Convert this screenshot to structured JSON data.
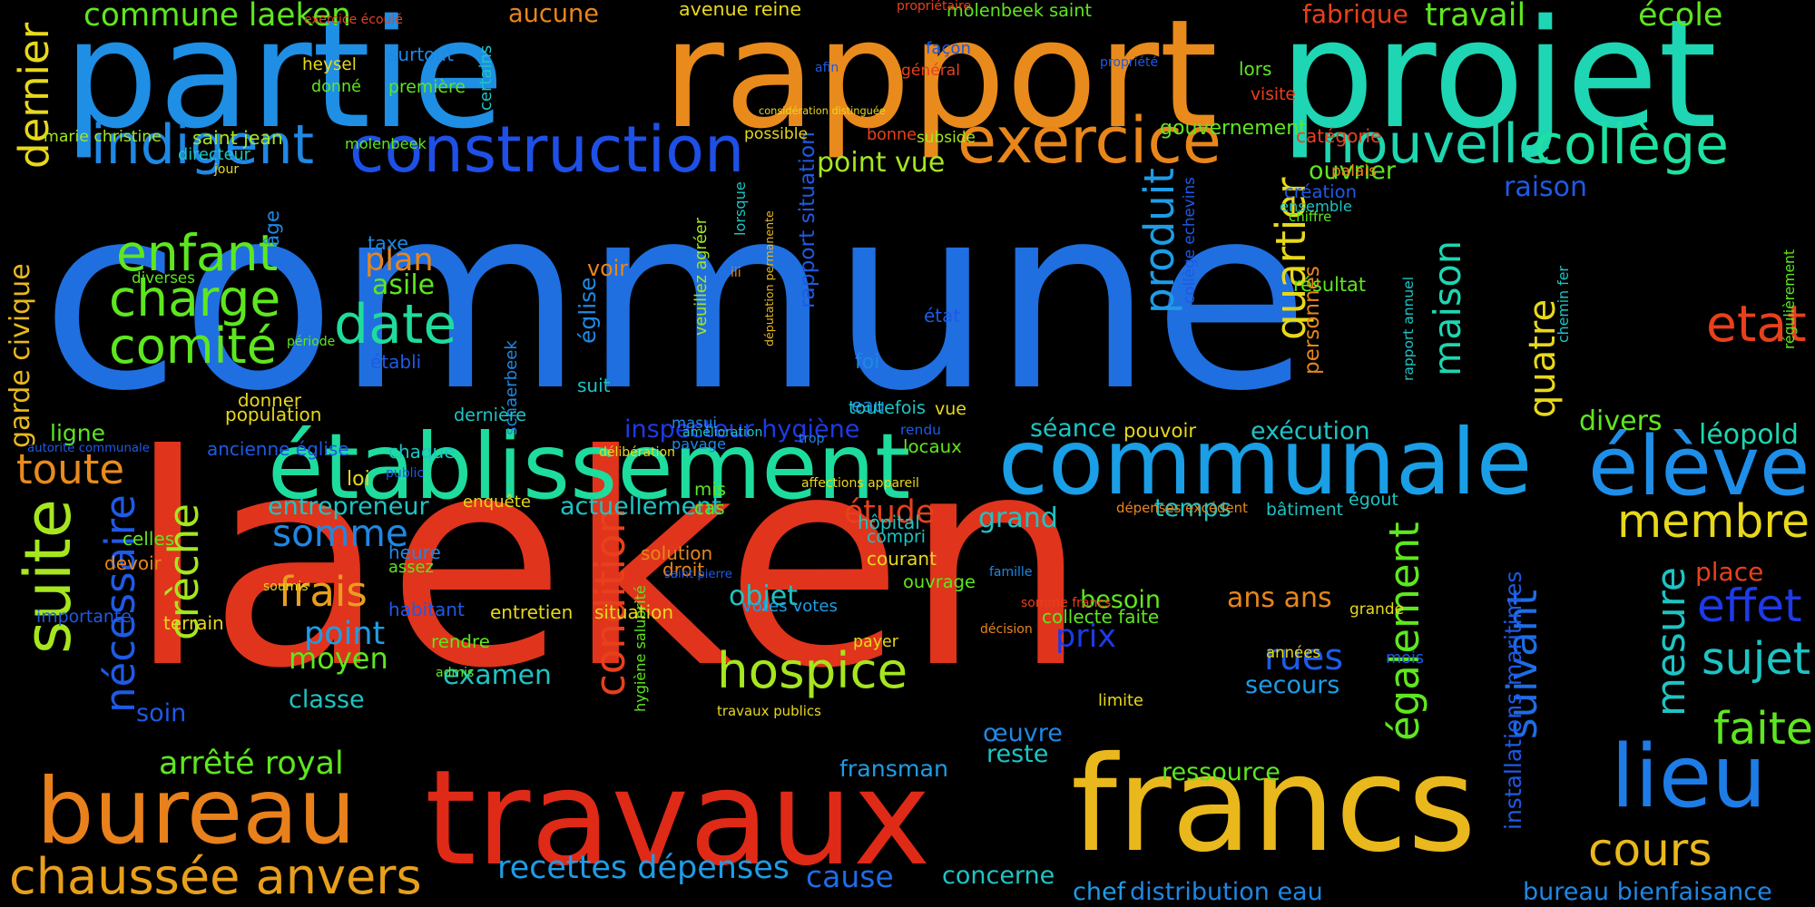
{
  "words": [
    {
      "text": "commune",
      "color": "#1f6fe0"
    },
    {
      "text": "laeken",
      "color": "#e0341c"
    },
    {
      "text": "rapport",
      "color": "#e88a1c"
    },
    {
      "text": "partie",
      "color": "#1e8fe4"
    },
    {
      "text": "projet",
      "color": "#1ed6b4"
    },
    {
      "text": "travaux",
      "color": "#e02a18"
    },
    {
      "text": "francs",
      "color": "#e8b81c"
    },
    {
      "text": "communale",
      "color": "#1a9ee6"
    },
    {
      "text": "établissement",
      "color": "#1edc9e"
    },
    {
      "text": "bureau",
      "color": "#e8801c"
    },
    {
      "text": "construction",
      "color": "#1e50e8"
    },
    {
      "text": "exercice",
      "color": "#e8861c"
    },
    {
      "text": "élève",
      "color": "#1e8ee8"
    },
    {
      "text": "suite",
      "color": "#a6e61e"
    },
    {
      "text": "lieu",
      "color": "#1e7ce6"
    },
    {
      "text": "indigent",
      "color": "#1e88e4"
    },
    {
      "text": "nouvelle",
      "color": "#1ed6b0"
    },
    {
      "text": "collège",
      "color": "#1ee0a0"
    },
    {
      "text": "hospice",
      "color": "#a6e61e"
    },
    {
      "text": "chaussée anvers",
      "color": "#e8a01c"
    },
    {
      "text": "enfant",
      "color": "#5ee61e"
    },
    {
      "text": "charge",
      "color": "#5ee61e"
    },
    {
      "text": "comité",
      "color": "#5ee61e"
    },
    {
      "text": "date",
      "color": "#1edc9e"
    },
    {
      "text": "membre",
      "color": "#e8d81c"
    },
    {
      "text": "cours",
      "color": "#e8b81c"
    },
    {
      "text": "effet",
      "color": "#1e3ae6"
    },
    {
      "text": "faite",
      "color": "#5ee61e"
    },
    {
      "text": "sujet",
      "color": "#1ec4c4"
    },
    {
      "text": "etat",
      "color": "#e8401c"
    },
    {
      "text": "toute",
      "color": "#e88a1c"
    },
    {
      "text": "somme",
      "color": "#1e88e4"
    },
    {
      "text": "frais",
      "color": "#e8a01c"
    },
    {
      "text": "rues",
      "color": "#1e5ae6"
    },
    {
      "text": "recettes dépenses",
      "color": "#1e9ce6"
    },
    {
      "text": "commune laeken",
      "color": "#5ee61e"
    },
    {
      "text": "travail",
      "color": "#5ee61e"
    },
    {
      "text": "école",
      "color": "#5ee61e"
    },
    {
      "text": "dernier",
      "color": "#e8d81c"
    },
    {
      "text": "point",
      "color": "#1e9ce6"
    },
    {
      "text": "moyen",
      "color": "#5ee61e"
    },
    {
      "text": "plan",
      "color": "#e8861c"
    },
    {
      "text": "asile",
      "color": "#5ee61e"
    },
    {
      "text": "arrêté royal",
      "color": "#5ee61e"
    },
    {
      "text": "prix",
      "color": "#1e3ae6"
    },
    {
      "text": "cause",
      "color": "#1e6ce6"
    },
    {
      "text": "examen",
      "color": "#1ec4c4"
    },
    {
      "text": "produit",
      "color": "#1e9ce6"
    },
    {
      "text": "quartier",
      "color": "#e8d81c"
    },
    {
      "text": "maison",
      "color": "#1ed6b0"
    },
    {
      "text": "condition",
      "color": "#e8401c"
    },
    {
      "text": "également",
      "color": "#5ee61e"
    },
    {
      "text": "suivant",
      "color": "#1e6ce6"
    },
    {
      "text": "mesure",
      "color": "#1ec4c4"
    },
    {
      "text": "crèche",
      "color": "#a6e61e"
    },
    {
      "text": "nécessaire",
      "color": "#1e5ae6"
    },
    {
      "text": "quatre",
      "color": "#e8d81c"
    },
    {
      "text": "exécution",
      "color": "#1ec4c4"
    },
    {
      "text": "séance",
      "color": "#1ec4c4"
    },
    {
      "text": "pouvoir",
      "color": "#e8d81c"
    },
    {
      "text": "léopold",
      "color": "#1ed6b0"
    },
    {
      "text": "divers",
      "color": "#5ee61e"
    },
    {
      "text": "étude",
      "color": "#e8401c"
    },
    {
      "text": "temps",
      "color": "#1ec4c4"
    },
    {
      "text": "grand",
      "color": "#1ec4c4"
    },
    {
      "text": "objet",
      "color": "#1ec4c4"
    },
    {
      "text": "besoin",
      "color": "#5ee61e"
    },
    {
      "text": "ans ans",
      "color": "#e8861c"
    },
    {
      "text": "secours",
      "color": "#1e9ce6"
    },
    {
      "text": "reste",
      "color": "#1ec4c4"
    },
    {
      "text": "œuvre",
      "color": "#1e88e4"
    },
    {
      "text": "fransman",
      "color": "#1e9ce6"
    },
    {
      "text": "ressource",
      "color": "#5ee61e"
    },
    {
      "text": "chef",
      "color": "#1e9ce6"
    },
    {
      "text": "distribution eau",
      "color": "#1e88e4"
    },
    {
      "text": "bureau bienfaisance",
      "color": "#1e88e4"
    },
    {
      "text": "entrepreneur",
      "color": "#1ec4c4"
    },
    {
      "text": "actuellement",
      "color": "#1ec4c4"
    },
    {
      "text": "inspecteur hygiène",
      "color": "#1e3ae6"
    },
    {
      "text": "place",
      "color": "#e8401c"
    },
    {
      "text": "gouvernement",
      "color": "#5ee61e"
    },
    {
      "text": "raison",
      "color": "#1e5ae6"
    },
    {
      "text": "ouvrier",
      "color": "#5ee61e"
    },
    {
      "text": "concerne",
      "color": "#1ec4c4"
    },
    {
      "text": "point vue",
      "color": "#a6e61e"
    },
    {
      "text": "classe",
      "color": "#1ec4c4"
    },
    {
      "text": "soin",
      "color": "#1e5ae6"
    },
    {
      "text": "ligne",
      "color": "#5ee61e"
    },
    {
      "text": "aucune",
      "color": "#e8861c"
    },
    {
      "text": "fabrique",
      "color": "#e8401c"
    },
    {
      "text": "avenue reine",
      "color": "#e8d81c"
    },
    {
      "text": "molenbeek saint",
      "color": "#5ee61e"
    },
    {
      "text": "installations maritimes",
      "color": "#1e5ae6"
    },
    {
      "text": "rapport situation",
      "color": "#1e5ae6"
    },
    {
      "text": "garde civique",
      "color": "#e8b81c"
    },
    {
      "text": "schaerbeek",
      "color": "#1e88e4"
    },
    {
      "text": "église",
      "color": "#1e88e4"
    },
    {
      "text": "députation permanente",
      "color": "#e8b81c"
    },
    {
      "text": "veuillez agréer",
      "color": "#a6e61e"
    },
    {
      "text": "hygiène salubrité",
      "color": "#5ee61e"
    },
    {
      "text": "rapport annuel",
      "color": "#1ec4c4"
    },
    {
      "text": "collège echevins",
      "color": "#1e5ae6"
    },
    {
      "text": "personnes",
      "color": "#e8861c"
    },
    {
      "text": "chemin fer",
      "color": "#1ec4c4"
    },
    {
      "text": "régulièrement",
      "color": "#5ee61e"
    },
    {
      "text": "heysel",
      "color": "#e8d81c"
    },
    {
      "text": "surtout",
      "color": "#1e88e4"
    },
    {
      "text": "donné",
      "color": "#5ee61e"
    },
    {
      "text": "première",
      "color": "#5ee61e"
    },
    {
      "text": "marie christine",
      "color": "#a6e61e"
    },
    {
      "text": "saint jean",
      "color": "#a6e61e"
    },
    {
      "text": "directeur",
      "color": "#1ec4c4"
    },
    {
      "text": "molenbeek",
      "color": "#5ee61e"
    },
    {
      "text": "bonne",
      "color": "#e8401c"
    },
    {
      "text": "possible",
      "color": "#e8d81c"
    },
    {
      "text": "subside",
      "color": "#a6e61e"
    },
    {
      "text": "façon",
      "color": "#1e5ae6"
    },
    {
      "text": "général",
      "color": "#e8401c"
    },
    {
      "text": "lors",
      "color": "#5ee61e"
    },
    {
      "text": "visite",
      "color": "#e8401c"
    },
    {
      "text": "catégorie",
      "color": "#e8401c"
    },
    {
      "text": "palais",
      "color": "#e8861c"
    },
    {
      "text": "création",
      "color": "#1e5ae6"
    },
    {
      "text": "ensemble",
      "color": "#1ec4c4"
    },
    {
      "text": "chiffre",
      "color": "#5ee61e"
    },
    {
      "text": "résultat",
      "color": "#5ee61e"
    },
    {
      "text": "taxe",
      "color": "#1e88e4"
    },
    {
      "text": "diverses",
      "color": "#5ee61e"
    },
    {
      "text": "voir",
      "color": "#e8861c"
    },
    {
      "text": "établi",
      "color": "#1e5ae6"
    },
    {
      "text": "foi",
      "color": "#1e88e4"
    },
    {
      "text": "état",
      "color": "#1e5ae6"
    },
    {
      "text": "eau",
      "color": "#1e88e4"
    },
    {
      "text": "vue",
      "color": "#e8d81c"
    },
    {
      "text": "suit",
      "color": "#1ec4c4"
    },
    {
      "text": "dernière",
      "color": "#1ec4c4"
    },
    {
      "text": "donner",
      "color": "#e8d81c"
    },
    {
      "text": "population",
      "color": "#e8d81c"
    },
    {
      "text": "enquête",
      "color": "#e8d81c"
    },
    {
      "text": "dépenses excédent",
      "color": "#e8861c"
    },
    {
      "text": "bâtiment",
      "color": "#1ec4c4"
    },
    {
      "text": "toutefois",
      "color": "#1ec4c4"
    },
    {
      "text": "rendu",
      "color": "#1e5ae6"
    },
    {
      "text": "locaux",
      "color": "#5ee61e"
    },
    {
      "text": "masui",
      "color": "#1e88e4"
    },
    {
      "text": "pavage",
      "color": "#1e88e4"
    },
    {
      "text": "égout",
      "color": "#1ec4c4"
    },
    {
      "text": "grande",
      "color": "#e8d81c"
    },
    {
      "text": "mois",
      "color": "#1e5ae6"
    },
    {
      "text": "années",
      "color": "#e8d81c"
    },
    {
      "text": "limite",
      "color": "#e8d81c"
    },
    {
      "text": "collecte faite",
      "color": "#5ee61e"
    },
    {
      "text": "votes votes",
      "color": "#1e9ce6"
    },
    {
      "text": "travaux publics",
      "color": "#e8d81c"
    },
    {
      "text": "payer",
      "color": "#e8d81c"
    },
    {
      "text": "ouvrage",
      "color": "#5ee61e"
    },
    {
      "text": "courant",
      "color": "#e8d81c"
    },
    {
      "text": "compri",
      "color": "#1ec4c4"
    },
    {
      "text": "hôpital",
      "color": "#1ec4c4"
    },
    {
      "text": "cas",
      "color": "#5ee61e"
    },
    {
      "text": "mis",
      "color": "#5ee61e"
    },
    {
      "text": "solution",
      "color": "#e8861c"
    },
    {
      "text": "droit",
      "color": "#e8861c"
    },
    {
      "text": "situation",
      "color": "#e8d81c"
    },
    {
      "text": "entretien",
      "color": "#e8d81c"
    },
    {
      "text": "habitant",
      "color": "#1e5ae6"
    },
    {
      "text": "rendre",
      "color": "#5ee61e"
    },
    {
      "text": "terrain",
      "color": "#e8d81c"
    },
    {
      "text": "importante",
      "color": "#1e5ae6"
    },
    {
      "text": "devoir",
      "color": "#e8861c"
    },
    {
      "text": "celles",
      "color": "#5ee61e"
    },
    {
      "text": "heure",
      "color": "#1e88e4"
    },
    {
      "text": "assez",
      "color": "#5ee61e"
    },
    {
      "text": "loi",
      "color": "#e8d81c"
    },
    {
      "text": "chaque",
      "color": "#1ec4c4"
    },
    {
      "text": "ancienne église",
      "color": "#1e5ae6"
    },
    {
      "text": "autorité communale",
      "color": "#1e5ae6"
    },
    {
      "text": "âge",
      "color": "#1e88e4"
    },
    {
      "text": "exercice écoulé",
      "color": "#e8401c"
    },
    {
      "text": "propriétaire",
      "color": "#e8401c"
    },
    {
      "text": "afin",
      "color": "#1e5ae6"
    },
    {
      "text": "considération distinguée",
      "color": "#e8d81c"
    },
    {
      "text": "propriété",
      "color": "#1e5ae6"
    },
    {
      "text": "certains",
      "color": "#1ec4c4"
    },
    {
      "text": "jour",
      "color": "#e8d81c"
    },
    {
      "text": "lorsque",
      "color": "#1ec4c4"
    },
    {
      "text": "iii",
      "color": "#e8861c"
    },
    {
      "text": "période",
      "color": "#5ee61e"
    },
    {
      "text": "trop",
      "color": "#1e88e4"
    },
    {
      "text": "amélioration",
      "color": "#1ec4c4"
    },
    {
      "text": "délibération",
      "color": "#e8d81c"
    },
    {
      "text": "affections appareil",
      "color": "#e8d81c"
    },
    {
      "text": "public",
      "color": "#1e5ae6"
    },
    {
      "text": "saint pierre",
      "color": "#1e5ae6"
    },
    {
      "text": "famille",
      "color": "#1e88e4"
    },
    {
      "text": "somme francs",
      "color": "#e8401c"
    },
    {
      "text": "décision",
      "color": "#e8861c"
    },
    {
      "text": "soumis",
      "color": "#e8d81c"
    },
    {
      "text": "admis",
      "color": "#5ee61e"
    }
  ]
}
